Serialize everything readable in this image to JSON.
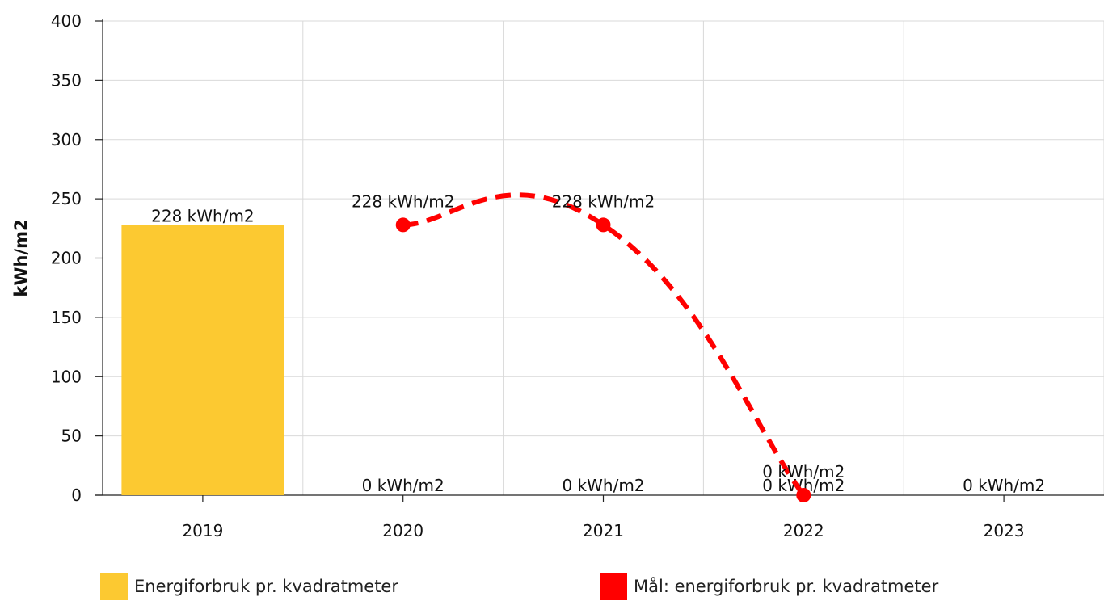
{
  "chart_data": {
    "type": "bar",
    "categories": [
      "2019",
      "2020",
      "2021",
      "2022",
      "2023"
    ],
    "ylabel": "kWh/m2",
    "ylim": [
      0,
      400
    ],
    "yticks": [
      0,
      50,
      100,
      150,
      200,
      250,
      300,
      350,
      400
    ],
    "grid": true,
    "legend_position": "bottom",
    "series": [
      {
        "name": "Energiforbruk pr. kvadratmeter",
        "type": "bar",
        "color": "#FCC931",
        "values": [
          228,
          0,
          0,
          0,
          0
        ],
        "labels": [
          "228 kWh/m2",
          "0 kWh/m2",
          "0 kWh/m2",
          "0 kWh/m2",
          "0 kWh/m2"
        ]
      },
      {
        "name": "Mål: energiforbruk pr. kvadratmeter",
        "type": "line",
        "style": "dashed",
        "smooth": true,
        "color": "#FF0000",
        "x": [
          "2020",
          "2021",
          "2022"
        ],
        "values": [
          228,
          228,
          0
        ],
        "labels": [
          "228 kWh/m2",
          "228 kWh/m2",
          "0 kWh/m2"
        ]
      }
    ]
  }
}
